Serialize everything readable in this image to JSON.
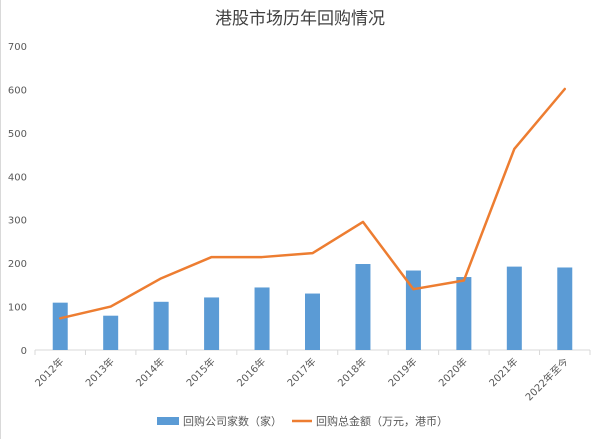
{
  "chart_data": {
    "type": "bar",
    "title": "港股市场历年回购情况",
    "categories": [
      "2012年",
      "2013年",
      "2014年",
      "2015年",
      "2016年",
      "2017年",
      "2018年",
      "2019年",
      "2020年",
      "2021年",
      "2022年至今"
    ],
    "series": [
      {
        "name": "回购公司家数（家）",
        "type": "bar",
        "color": "#5b9bd5",
        "values": [
          109,
          79,
          111,
          121,
          144,
          130,
          198,
          183,
          168,
          192,
          190
        ]
      },
      {
        "name": "回购总金额（万元，港币）",
        "type": "line",
        "color": "#ed7d31",
        "values": [
          73,
          100,
          165,
          214,
          214,
          223,
          295,
          140,
          160,
          463,
          601
        ]
      }
    ],
    "ylim": [
      0,
      700
    ],
    "yticks": [
      0,
      100,
      200,
      300,
      400,
      500,
      600,
      700
    ],
    "xlabel": "",
    "ylabel": "",
    "grid": false,
    "legend_position": "bottom",
    "colors": {
      "bar": "#5b9bd5",
      "line": "#ed7d31",
      "axis": "#d9d9d9",
      "text": "#595959"
    }
  }
}
